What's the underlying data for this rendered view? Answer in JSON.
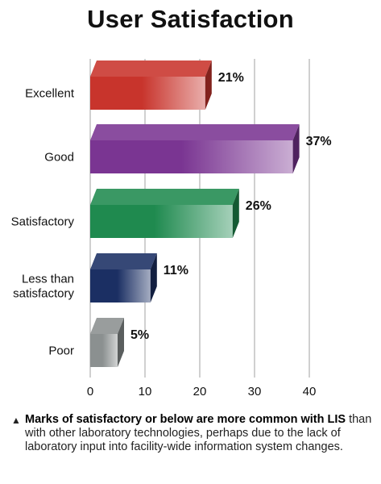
{
  "title": "User Satisfaction",
  "chart_data": {
    "type": "bar",
    "orientation": "horizontal",
    "style": "3d",
    "title": "User Satisfaction",
    "categories": [
      "Excellent",
      "Good",
      "Satisfactory",
      "Less than satisfactory",
      "Poor"
    ],
    "category_lines": [
      [
        "Excellent"
      ],
      [
        "Good"
      ],
      [
        "Satisfactory"
      ],
      [
        "Less than",
        "satisfactory"
      ],
      [
        "Poor"
      ]
    ],
    "values": [
      21,
      37,
      26,
      11,
      5
    ],
    "value_labels": [
      "21%",
      "37%",
      "26%",
      "11%",
      "5%"
    ],
    "colors": [
      "#c8342c",
      "#7a3592",
      "#1f8a4f",
      "#1b2f63",
      "#8b9090"
    ],
    "xlim": [
      0,
      40
    ],
    "xticks": [
      0,
      10,
      20,
      30,
      40
    ],
    "grid": true,
    "xlabel": "",
    "ylabel": ""
  },
  "note": {
    "marker": "▲",
    "bold": "Marks of satisfactory or below are more common with LIS",
    "rest": " than with other laboratory technologies, perhaps due to the lack of laboratory input into facility-wide information system changes."
  }
}
